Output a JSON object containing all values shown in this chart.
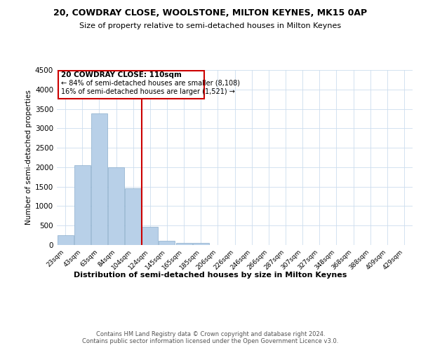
{
  "title": "20, COWDRAY CLOSE, WOOLSTONE, MILTON KEYNES, MK15 0AP",
  "subtitle": "Size of property relative to semi-detached houses in Milton Keynes",
  "xlabel": "Distribution of semi-detached houses by size in Milton Keynes",
  "ylabel": "Number of semi-detached properties",
  "footnote": "Contains HM Land Registry data © Crown copyright and database right 2024.\nContains public sector information licensed under the Open Government Licence v3.0.",
  "categories": [
    "23sqm",
    "43sqm",
    "63sqm",
    "84sqm",
    "104sqm",
    "124sqm",
    "145sqm",
    "165sqm",
    "185sqm",
    "206sqm",
    "226sqm",
    "246sqm",
    "266sqm",
    "287sqm",
    "307sqm",
    "327sqm",
    "348sqm",
    "368sqm",
    "388sqm",
    "409sqm",
    "429sqm"
  ],
  "values": [
    250,
    2050,
    3380,
    2000,
    1450,
    470,
    110,
    60,
    50,
    0,
    0,
    0,
    0,
    0,
    0,
    0,
    0,
    0,
    0,
    0,
    0
  ],
  "annotation_title": "20 COWDRAY CLOSE: 110sqm",
  "annotation_line1": "← 84% of semi-detached houses are smaller (8,108)",
  "annotation_line2": "16% of semi-detached houses are larger (1,521) →",
  "bar_color": "#b8d0e8",
  "bar_edge_color": "#8aadcc",
  "red_line_color": "#cc0000",
  "annotation_box_color": "#cc0000",
  "background_color": "#ffffff",
  "grid_color": "#ccddee",
  "ylim": [
    0,
    4500
  ],
  "yticks": [
    0,
    500,
    1000,
    1500,
    2000,
    2500,
    3000,
    3500,
    4000,
    4500
  ],
  "red_line_x": 4.5
}
